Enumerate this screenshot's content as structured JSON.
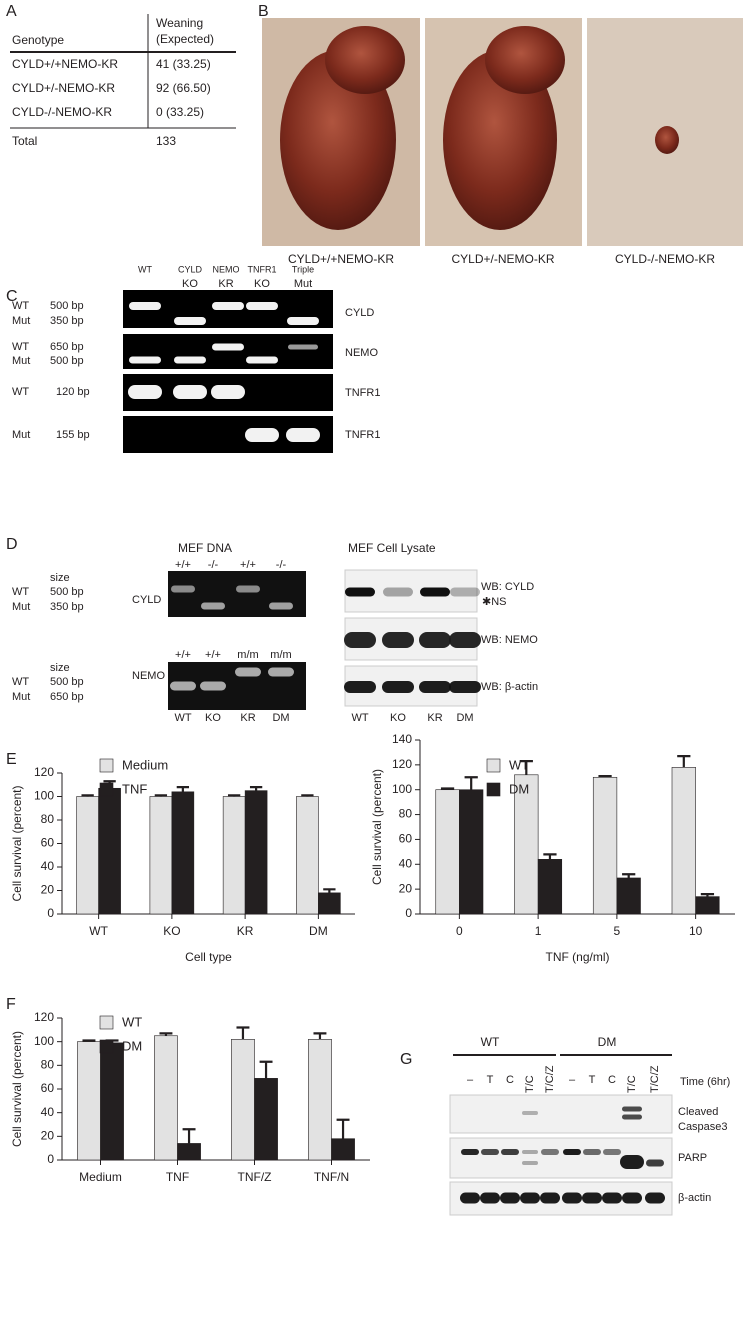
{
  "panel_labels": [
    "A",
    "B",
    "C",
    "D",
    "E",
    "F",
    "G"
  ],
  "table": {
    "header": [
      "Genotype",
      "Weaning",
      "(Expected)"
    ],
    "rows": [
      [
        "CYLD+/+NEMO-KR",
        "41 (33.25)"
      ],
      [
        "CYLD+/-NEMO-KR",
        "92 (66.50)"
      ],
      [
        "CYLD-/-NEMO-KR",
        "0 (33.25)"
      ]
    ],
    "total": [
      "Total",
      "133"
    ]
  },
  "photos": [
    "CYLD+/+NEMO-KR",
    "CYLD+/-NEMO-KR",
    "CYLD-/-NEMO-KR"
  ],
  "gel_c": {
    "columns": [
      [
        "WT"
      ],
      [
        "CYLD",
        "KO"
      ],
      [
        "NEMO",
        "KR"
      ],
      [
        "TNFR1",
        "KO"
      ],
      [
        "Triple",
        "Mut"
      ]
    ],
    "rows": [
      {
        "bands": [
          [
            "WT",
            "500 bp"
          ],
          [
            "Mut",
            "350 bp"
          ]
        ],
        "gene": "CYLD"
      },
      {
        "bands": [
          [
            "WT",
            "650 bp"
          ],
          [
            "Mut",
            "500 bp"
          ]
        ],
        "gene": "NEMO"
      },
      {
        "bands": [
          [
            "WT",
            "120 bp"
          ]
        ],
        "gene": "TNFR1"
      },
      {
        "bands": [
          [
            "Mut",
            "155 bp"
          ]
        ],
        "gene": "TNFR1"
      }
    ]
  },
  "gel_d": {
    "title": "MEF DNA",
    "rows": [
      {
        "genotypes": [
          "+/+",
          "-/-",
          "+/+",
          "-/-"
        ],
        "size": "size",
        "bands": [
          [
            "WT",
            "500 bp"
          ],
          [
            "Mut",
            "350 bp"
          ]
        ],
        "gene": "CYLD"
      },
      {
        "genotypes": [
          "+/+",
          "+/+",
          "m/m",
          "m/m"
        ],
        "size": "size",
        "bands": [
          [
            "WT",
            "500 bp"
          ],
          [
            "Mut",
            "650 bp"
          ]
        ],
        "gene": "NEMO"
      }
    ],
    "lanes": [
      "WT",
      "KO",
      "KR",
      "DM"
    ]
  },
  "western_d": {
    "title": "MEF Cell Lysate",
    "blots": [
      "WB: CYLD",
      "WB: NEMO",
      "WB: β-actin"
    ],
    "ns": "✱NS",
    "lanes": [
      "WT",
      "KO",
      "KR",
      "DM"
    ]
  },
  "chart_data": [
    {
      "type": "bar",
      "ylabel": "Cell survival (percent)",
      "xlabel": "Cell type",
      "categories": [
        "WT",
        "KO",
        "KR",
        "DM"
      ],
      "ylim": [
        0,
        120
      ],
      "yticks": [
        0,
        20,
        40,
        60,
        80,
        100,
        120
      ],
      "series": [
        {
          "name": "Medium",
          "color": "#e2e2e2",
          "values": [
            100,
            100,
            100,
            100
          ],
          "errors": [
            1,
            1,
            1,
            1
          ]
        },
        {
          "name": "TNF",
          "color": "#231f20",
          "values": [
            107,
            104,
            105,
            18
          ],
          "errors": [
            6,
            4,
            3,
            3
          ]
        }
      ]
    },
    {
      "type": "bar",
      "ylabel": "Cell survival (percent)",
      "xlabel": "TNF (ng/ml)",
      "categories": [
        "0",
        "1",
        "5",
        "10"
      ],
      "ylim": [
        0,
        140
      ],
      "yticks": [
        0,
        20,
        40,
        60,
        80,
        100,
        120,
        140
      ],
      "series": [
        {
          "name": "WT",
          "color": "#e2e2e2",
          "values": [
            100,
            112,
            110,
            118
          ],
          "errors": [
            1,
            11,
            1,
            9
          ]
        },
        {
          "name": "DM",
          "color": "#231f20",
          "values": [
            100,
            44,
            29,
            14
          ],
          "errors": [
            10,
            4,
            3,
            2
          ]
        }
      ]
    },
    {
      "type": "bar",
      "ylabel": "Cell survival (percent)",
      "categories": [
        "Medium",
        "TNF",
        "TNF/Z",
        "TNF/N"
      ],
      "ylim": [
        0,
        120
      ],
      "yticks": [
        0,
        20,
        40,
        60,
        80,
        100,
        120
      ],
      "series": [
        {
          "name": "WT",
          "color": "#e2e2e2",
          "values": [
            100,
            105,
            102,
            102
          ],
          "errors": [
            1,
            2,
            10,
            5
          ]
        },
        {
          "name": "DM",
          "color": "#231f20",
          "values": [
            99,
            14,
            69,
            18
          ],
          "errors": [
            2,
            12,
            14,
            16
          ]
        }
      ]
    }
  ],
  "western_g": {
    "groups": [
      "WT",
      "DM"
    ],
    "lanes": [
      "–",
      "T",
      "C",
      "T/C",
      "T/C/Z",
      "–",
      "T",
      "C",
      "T/C",
      "T/C/Z"
    ],
    "time": "Time (6hr)",
    "blots": [
      [
        "Cleaved",
        "Caspase3"
      ],
      [
        "PARP"
      ],
      [
        "β-actin"
      ]
    ]
  }
}
